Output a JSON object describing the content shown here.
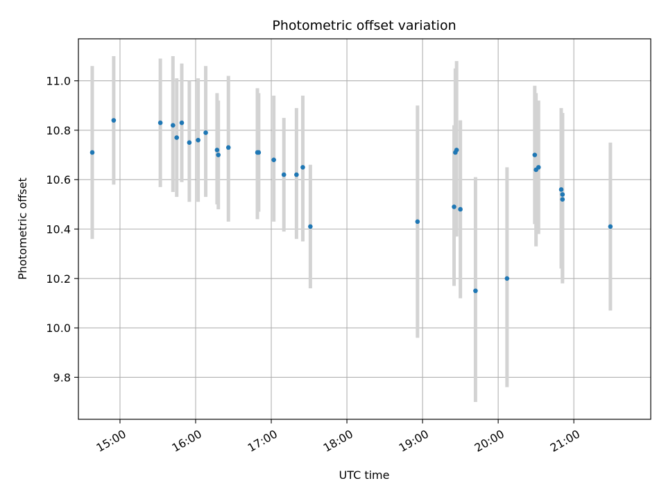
{
  "chart_data": {
    "type": "scatter",
    "title": "Photometric offset variation",
    "xlabel": "UTC time",
    "ylabel": "Photometric offset",
    "x_ticks": [
      "15:00",
      "16:00",
      "17:00",
      "18:00",
      "19:00",
      "20:00",
      "21:00"
    ],
    "y_ticks": [
      "9.8",
      "10.0",
      "10.2",
      "10.4",
      "10.6",
      "10.8",
      "11.0"
    ],
    "xlim": [
      "14:27",
      "22:01"
    ],
    "ylim": [
      9.63,
      11.17
    ],
    "grid": true,
    "point_color": "#1f77b4",
    "errorbar_color": "#d3d3d3",
    "series": [
      {
        "points": [
          {
            "t": "14:38",
            "y": 10.71,
            "lo": 10.36,
            "hi": 11.06
          },
          {
            "t": "14:55",
            "y": 10.84,
            "lo": 10.58,
            "hi": 11.1
          },
          {
            "t": "15:32",
            "y": 10.83,
            "lo": 10.57,
            "hi": 11.09
          },
          {
            "t": "15:42",
            "y": 10.82,
            "lo": 10.55,
            "hi": 11.1
          },
          {
            "t": "15:45",
            "y": 10.77,
            "lo": 10.53,
            "hi": 11.01
          },
          {
            "t": "15:49",
            "y": 10.83,
            "lo": 10.59,
            "hi": 11.07
          },
          {
            "t": "15:55",
            "y": 10.75,
            "lo": 10.51,
            "hi": 11.0
          },
          {
            "t": "16:02",
            "y": 10.76,
            "lo": 10.51,
            "hi": 11.01
          },
          {
            "t": "16:08",
            "y": 10.79,
            "lo": 10.53,
            "hi": 11.06
          },
          {
            "t": "16:17",
            "y": 10.72,
            "lo": 10.5,
            "hi": 10.95
          },
          {
            "t": "16:18",
            "y": 10.7,
            "lo": 10.48,
            "hi": 10.92
          },
          {
            "t": "16:26",
            "y": 10.73,
            "lo": 10.43,
            "hi": 11.02
          },
          {
            "t": "16:49",
            "y": 10.71,
            "lo": 10.44,
            "hi": 10.97
          },
          {
            "t": "16:50",
            "y": 10.71,
            "lo": 10.47,
            "hi": 10.95
          },
          {
            "t": "17:02",
            "y": 10.68,
            "lo": 10.43,
            "hi": 10.94
          },
          {
            "t": "17:10",
            "y": 10.62,
            "lo": 10.39,
            "hi": 10.85
          },
          {
            "t": "17:20",
            "y": 10.62,
            "lo": 10.36,
            "hi": 10.89
          },
          {
            "t": "17:25",
            "y": 10.65,
            "lo": 10.35,
            "hi": 10.94
          },
          {
            "t": "17:31",
            "y": 10.41,
            "lo": 10.16,
            "hi": 10.66
          },
          {
            "t": "18:56",
            "y": 10.43,
            "lo": 9.96,
            "hi": 10.9
          },
          {
            "t": "19:25",
            "y": 10.49,
            "lo": 10.17,
            "hi": 10.82
          },
          {
            "t": "19:26",
            "y": 10.71,
            "lo": 10.37,
            "hi": 11.05
          },
          {
            "t": "19:27",
            "y": 10.72,
            "lo": 10.37,
            "hi": 11.08
          },
          {
            "t": "19:30",
            "y": 10.48,
            "lo": 10.12,
            "hi": 10.84
          },
          {
            "t": "19:42",
            "y": 10.15,
            "lo": 9.7,
            "hi": 10.61
          },
          {
            "t": "20:07",
            "y": 10.2,
            "lo": 9.76,
            "hi": 10.65
          },
          {
            "t": "20:29",
            "y": 10.7,
            "lo": 10.42,
            "hi": 10.98
          },
          {
            "t": "20:30",
            "y": 10.64,
            "lo": 10.33,
            "hi": 10.95
          },
          {
            "t": "20:32",
            "y": 10.65,
            "lo": 10.38,
            "hi": 10.92
          },
          {
            "t": "20:50",
            "y": 10.56,
            "lo": 10.24,
            "hi": 10.89
          },
          {
            "t": "20:51",
            "y": 10.54,
            "lo": 10.2,
            "hi": 10.87
          },
          {
            "t": "20:51",
            "y": 10.52,
            "lo": 10.18,
            "hi": 10.87
          },
          {
            "t": "21:29",
            "y": 10.41,
            "lo": 10.07,
            "hi": 10.75
          }
        ]
      }
    ]
  }
}
